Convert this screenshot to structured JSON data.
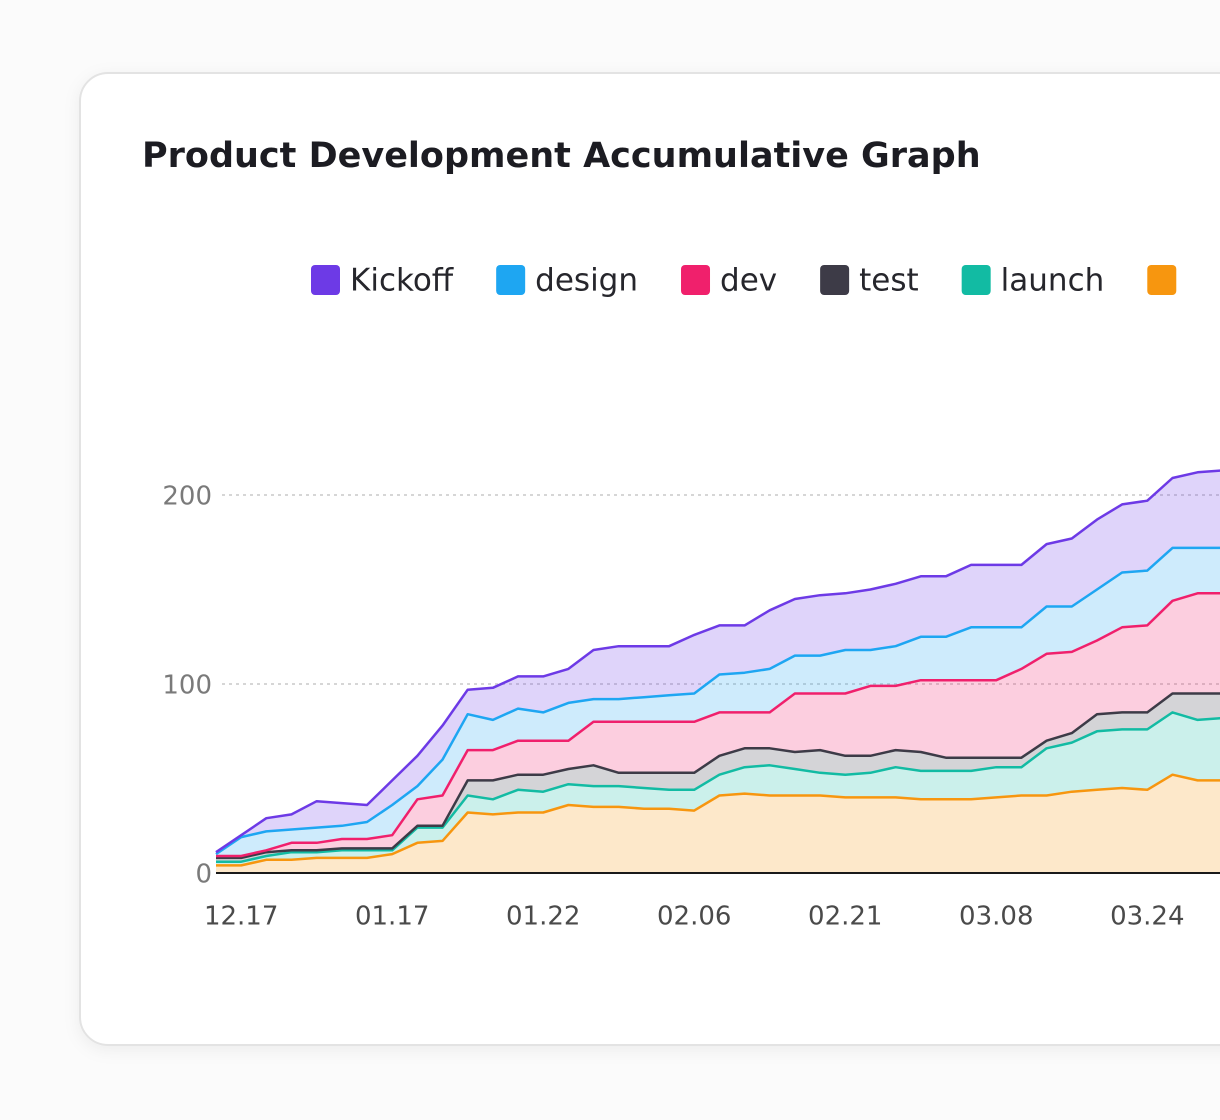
{
  "chart_data": {
    "type": "stacked-area",
    "title": "Product Development Accumulative Graph",
    "categories": [
      null,
      "12.17",
      null,
      null,
      null,
      null,
      null,
      "01.17",
      null,
      null,
      null,
      null,
      null,
      "01.22",
      null,
      null,
      null,
      null,
      null,
      "02.06",
      null,
      null,
      null,
      null,
      null,
      "02.21",
      null,
      null,
      null,
      null,
      null,
      "03.08",
      null,
      null,
      null,
      null,
      null,
      "03.24",
      null,
      null,
      null
    ],
    "series": [
      {
        "name": "Kickoff",
        "color": "#6d3ae6",
        "values": [
          1,
          1,
          7,
          8,
          14,
          12,
          9,
          13,
          16,
          18,
          13,
          17,
          17,
          19,
          18,
          26,
          28,
          27,
          26,
          31,
          26,
          25,
          31,
          30,
          32,
          30,
          32,
          33,
          32,
          32,
          33,
          33,
          33,
          33,
          36,
          37,
          36,
          37,
          37,
          40,
          41
        ]
      },
      {
        "name": "design",
        "color": "#1ea6f2",
        "values": [
          1,
          10,
          10,
          7,
          8,
          7,
          9,
          16,
          7,
          19,
          19,
          16,
          17,
          15,
          20,
          12,
          12,
          13,
          14,
          15,
          20,
          21,
          23,
          20,
          20,
          23,
          19,
          21,
          23,
          23,
          28,
          28,
          22,
          25,
          24,
          27,
          29,
          29,
          28,
          24,
          24
        ]
      },
      {
        "name": "dev",
        "color": "#f0206c",
        "values": [
          1,
          1,
          1,
          4,
          4,
          5,
          5,
          7,
          14,
          16,
          16,
          16,
          18,
          18,
          15,
          23,
          27,
          27,
          27,
          27,
          23,
          19,
          19,
          31,
          30,
          33,
          37,
          34,
          38,
          41,
          41,
          41,
          47,
          46,
          43,
          39,
          45,
          46,
          49,
          53,
          53
        ]
      },
      {
        "name": "test",
        "color": "#3d3b47",
        "values": [
          2,
          2,
          2,
          1,
          1,
          1,
          1,
          1,
          1,
          1,
          8,
          10,
          8,
          9,
          8,
          11,
          7,
          8,
          9,
          9,
          10,
          10,
          9,
          9,
          12,
          10,
          9,
          9,
          10,
          7,
          7,
          5,
          5,
          4,
          5,
          9,
          9,
          9,
          10,
          14,
          13
        ]
      },
      {
        "name": "launch",
        "color": "#12bba3",
        "values": [
          2,
          2,
          2,
          4,
          3,
          4,
          4,
          2,
          8,
          7,
          9,
          8,
          12,
          11,
          11,
          11,
          11,
          11,
          10,
          11,
          11,
          14,
          16,
          14,
          12,
          12,
          13,
          16,
          15,
          15,
          15,
          16,
          15,
          25,
          26,
          31,
          31,
          32,
          33,
          32,
          33
        ]
      },
      {
        "color": "#f7960f",
        "values": [
          4,
          4,
          7,
          7,
          8,
          8,
          8,
          10,
          16,
          17,
          32,
          31,
          32,
          32,
          36,
          35,
          35,
          34,
          34,
          33,
          41,
          42,
          41,
          41,
          41,
          40,
          40,
          40,
          39,
          39,
          39,
          40,
          41,
          41,
          43,
          44,
          45,
          44,
          52,
          49,
          49
        ]
      }
    ],
    "ylim": [
      0,
      250
    ],
    "yticks": [
      0,
      100,
      200
    ],
    "grid": true
  }
}
